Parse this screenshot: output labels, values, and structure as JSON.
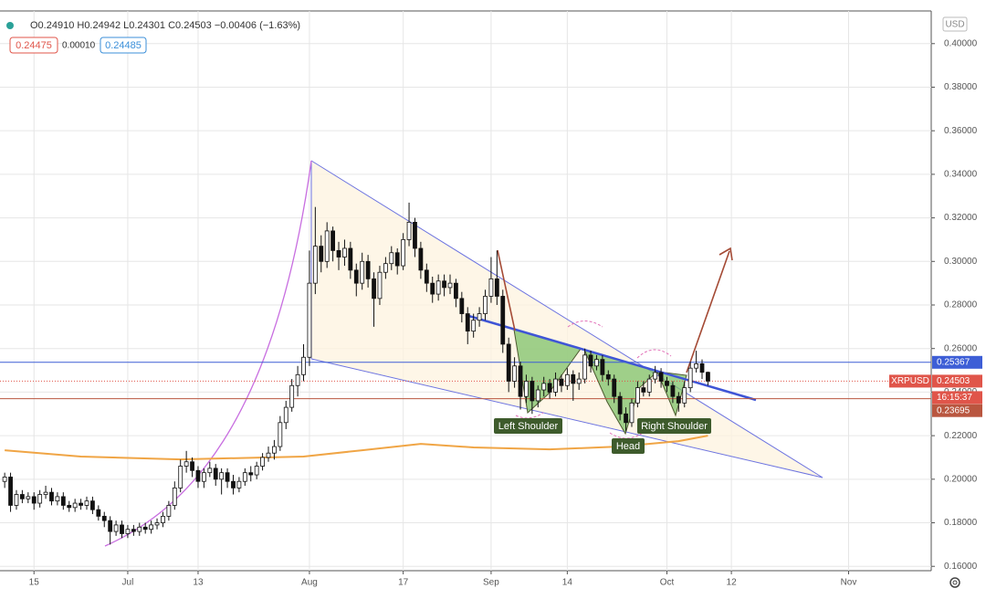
{
  "header": {
    "ohlc_line": "O0.24910 H0.24942 L0.24301 C0.24503 −0.00406 (−1.63%)",
    "bid": "0.24475",
    "spread": "0.00010",
    "ask": "0.24485"
  },
  "annotations": {
    "left_shoulder": "Left Shoulder",
    "head": "Head",
    "right_shoulder": "Right Shoulder"
  },
  "chart_data": {
    "type": "candlestick",
    "currency": "USD",
    "symbol": "XRPUSD",
    "countdown": "16:15:37",
    "xlim": [
      -5.8,
      153.1
    ],
    "ylim": [
      0.158,
      0.415
    ],
    "grid": true,
    "xticks": [
      {
        "value": 0,
        "label": "15"
      },
      {
        "value": 16,
        "label": "Jul"
      },
      {
        "value": 28,
        "label": "13"
      },
      {
        "value": 47,
        "label": "Aug"
      },
      {
        "value": 63,
        "label": "17"
      },
      {
        "value": 78,
        "label": "Sep"
      },
      {
        "value": 91,
        "label": "14"
      },
      {
        "value": 108,
        "label": "Oct"
      },
      {
        "value": 119,
        "label": "12"
      },
      {
        "value": 139,
        "label": "Nov"
      }
    ],
    "yticks": [
      {
        "value": 0.16,
        "label": "0.16000"
      },
      {
        "value": 0.18,
        "label": "0.18000"
      },
      {
        "value": 0.2,
        "label": "0.20000"
      },
      {
        "value": 0.22,
        "label": "0.22000"
      },
      {
        "value": 0.24,
        "label": "0.24000"
      },
      {
        "value": 0.26,
        "label": "0.26000"
      },
      {
        "value": 0.28,
        "label": "0.28000"
      },
      {
        "value": 0.3,
        "label": "0.30000"
      },
      {
        "value": 0.32,
        "label": "0.32000"
      },
      {
        "value": 0.34,
        "label": "0.34000"
      },
      {
        "value": 0.36,
        "label": "0.36000"
      },
      {
        "value": 0.38,
        "label": "0.38000"
      },
      {
        "value": 0.4,
        "label": "0.40000"
      }
    ],
    "up_color": "#ffffff",
    "down_color": "#111111",
    "candles": {
      "x": [
        -5,
        -4,
        -3,
        -2,
        -1,
        0,
        1,
        2,
        3,
        4,
        5,
        6,
        7,
        8,
        9,
        10,
        11,
        12,
        13,
        14,
        15,
        16,
        17,
        18,
        19,
        20,
        21,
        22,
        23,
        24,
        25,
        26,
        27,
        28,
        29,
        30,
        31,
        32,
        33,
        34,
        35,
        36,
        37,
        38,
        39,
        40,
        41,
        42,
        43,
        44,
        45,
        46,
        47,
        48,
        49,
        50,
        51,
        52,
        53,
        54,
        55,
        56,
        57,
        58,
        59,
        60,
        61,
        62,
        63,
        64,
        65,
        66,
        67,
        68,
        69,
        70,
        71,
        72,
        73,
        74,
        75,
        76,
        77,
        78,
        79,
        80,
        81,
        82,
        83,
        84,
        85,
        86,
        87,
        88,
        89,
        90,
        91,
        92,
        93,
        94,
        95,
        96,
        97,
        98,
        99,
        100,
        101,
        102,
        103,
        104,
        105,
        106,
        107,
        108,
        109,
        110,
        111,
        112,
        113,
        114,
        115
      ],
      "open": [
        0.199,
        0.201,
        0.188,
        0.193,
        0.191,
        0.192,
        0.189,
        0.193,
        0.194,
        0.19,
        0.192,
        0.188,
        0.187,
        0.189,
        0.188,
        0.19,
        0.186,
        0.183,
        0.181,
        0.176,
        0.179,
        0.175,
        0.177,
        0.176,
        0.178,
        0.177,
        0.179,
        0.18,
        0.183,
        0.188,
        0.196,
        0.206,
        0.208,
        0.204,
        0.199,
        0.203,
        0.205,
        0.2,
        0.203,
        0.199,
        0.196,
        0.199,
        0.203,
        0.202,
        0.206,
        0.21,
        0.212,
        0.215,
        0.226,
        0.233,
        0.243,
        0.248,
        0.256,
        0.29,
        0.307,
        0.3,
        0.314,
        0.305,
        0.302,
        0.306,
        0.296,
        0.29,
        0.3,
        0.292,
        0.283,
        0.295,
        0.299,
        0.304,
        0.298,
        0.31,
        0.318,
        0.306,
        0.296,
        0.29,
        0.285,
        0.291,
        0.288,
        0.29,
        0.283,
        0.276,
        0.268,
        0.273,
        0.276,
        0.284,
        0.292,
        0.284,
        0.262,
        0.245,
        0.252,
        0.238,
        0.245,
        0.236,
        0.241,
        0.244,
        0.24,
        0.246,
        0.243,
        0.248,
        0.244,
        0.246,
        0.257,
        0.252,
        0.255,
        0.248,
        0.246,
        0.238,
        0.23,
        0.226,
        0.235,
        0.242,
        0.24,
        0.246,
        0.249,
        0.245,
        0.243,
        0.238,
        0.235,
        0.242,
        0.251,
        0.253,
        0.2491
      ],
      "high": [
        0.203,
        0.203,
        0.195,
        0.195,
        0.194,
        0.194,
        0.195,
        0.197,
        0.196,
        0.194,
        0.194,
        0.19,
        0.191,
        0.191,
        0.192,
        0.192,
        0.188,
        0.185,
        0.183,
        0.181,
        0.181,
        0.179,
        0.179,
        0.18,
        0.18,
        0.181,
        0.182,
        0.185,
        0.19,
        0.199,
        0.209,
        0.213,
        0.21,
        0.206,
        0.205,
        0.208,
        0.207,
        0.205,
        0.205,
        0.202,
        0.201,
        0.205,
        0.206,
        0.208,
        0.212,
        0.215,
        0.218,
        0.229,
        0.236,
        0.246,
        0.252,
        0.262,
        0.305,
        0.325,
        0.312,
        0.318,
        0.316,
        0.309,
        0.31,
        0.309,
        0.299,
        0.304,
        0.303,
        0.295,
        0.298,
        0.302,
        0.307,
        0.306,
        0.313,
        0.327,
        0.32,
        0.309,
        0.299,
        0.293,
        0.294,
        0.294,
        0.294,
        0.292,
        0.286,
        0.279,
        0.276,
        0.279,
        0.287,
        0.302,
        0.305,
        0.287,
        0.265,
        0.256,
        0.254,
        0.248,
        0.247,
        0.243,
        0.247,
        0.246,
        0.249,
        0.248,
        0.251,
        0.25,
        0.249,
        0.26,
        0.259,
        0.257,
        0.257,
        0.25,
        0.248,
        0.24,
        0.233,
        0.237,
        0.245,
        0.245,
        0.248,
        0.252,
        0.251,
        0.247,
        0.245,
        0.24,
        0.245,
        0.254,
        0.259,
        0.255,
        0.24942
      ],
      "low": [
        0.196,
        0.185,
        0.186,
        0.189,
        0.189,
        0.186,
        0.187,
        0.191,
        0.188,
        0.188,
        0.186,
        0.185,
        0.185,
        0.186,
        0.186,
        0.184,
        0.181,
        0.178,
        0.17,
        0.174,
        0.173,
        0.173,
        0.174,
        0.174,
        0.175,
        0.175,
        0.177,
        0.178,
        0.181,
        0.186,
        0.194,
        0.203,
        0.201,
        0.196,
        0.196,
        0.201,
        0.197,
        0.193,
        0.196,
        0.193,
        0.194,
        0.197,
        0.199,
        0.2,
        0.204,
        0.208,
        0.209,
        0.213,
        0.223,
        0.231,
        0.238,
        0.245,
        0.252,
        0.285,
        0.295,
        0.297,
        0.3,
        0.296,
        0.298,
        0.292,
        0.284,
        0.287,
        0.288,
        0.27,
        0.28,
        0.292,
        0.296,
        0.294,
        0.296,
        0.307,
        0.302,
        0.292,
        0.286,
        0.281,
        0.282,
        0.284,
        0.285,
        0.279,
        0.272,
        0.262,
        0.265,
        0.27,
        0.273,
        0.281,
        0.28,
        0.258,
        0.24,
        0.242,
        0.232,
        0.235,
        0.23,
        0.233,
        0.238,
        0.237,
        0.238,
        0.24,
        0.241,
        0.236,
        0.241,
        0.244,
        0.249,
        0.25,
        0.245,
        0.243,
        0.235,
        0.227,
        0.222,
        0.224,
        0.233,
        0.238,
        0.238,
        0.244,
        0.242,
        0.24,
        0.235,
        0.231,
        0.233,
        0.24,
        0.249,
        0.246,
        0.24301
      ],
      "close": [
        0.201,
        0.188,
        0.193,
        0.191,
        0.192,
        0.189,
        0.193,
        0.194,
        0.19,
        0.192,
        0.188,
        0.187,
        0.189,
        0.188,
        0.19,
        0.186,
        0.183,
        0.181,
        0.176,
        0.179,
        0.175,
        0.177,
        0.176,
        0.178,
        0.177,
        0.179,
        0.18,
        0.183,
        0.188,
        0.196,
        0.206,
        0.208,
        0.204,
        0.199,
        0.203,
        0.205,
        0.2,
        0.203,
        0.199,
        0.196,
        0.199,
        0.203,
        0.202,
        0.206,
        0.21,
        0.212,
        0.215,
        0.226,
        0.233,
        0.243,
        0.248,
        0.256,
        0.29,
        0.307,
        0.3,
        0.314,
        0.305,
        0.302,
        0.306,
        0.296,
        0.29,
        0.3,
        0.292,
        0.283,
        0.295,
        0.299,
        0.304,
        0.298,
        0.31,
        0.318,
        0.306,
        0.296,
        0.29,
        0.285,
        0.291,
        0.288,
        0.29,
        0.283,
        0.276,
        0.268,
        0.273,
        0.276,
        0.284,
        0.292,
        0.284,
        0.262,
        0.245,
        0.252,
        0.238,
        0.245,
        0.236,
        0.241,
        0.244,
        0.24,
        0.246,
        0.243,
        0.248,
        0.244,
        0.246,
        0.257,
        0.252,
        0.255,
        0.248,
        0.246,
        0.238,
        0.23,
        0.226,
        0.235,
        0.242,
        0.24,
        0.246,
        0.249,
        0.245,
        0.243,
        0.238,
        0.235,
        0.242,
        0.251,
        0.253,
        0.2491,
        0.24503
      ]
    },
    "moving_average": {
      "color": "#f0a545",
      "x": [
        -5,
        8,
        25,
        46,
        56,
        66,
        75,
        88,
        100,
        110,
        115
      ],
      "values": [
        0.2133,
        0.2104,
        0.2091,
        0.2104,
        0.2133,
        0.2162,
        0.2146,
        0.2137,
        0.215,
        0.2175,
        0.22
      ]
    },
    "hlines": [
      {
        "value": 0.25367,
        "color": "#3d5ed6",
        "style": "solid"
      },
      {
        "value": 0.24503,
        "color": "#e0554a",
        "style": "dotted"
      },
      {
        "value": 0.23695,
        "color": "#b9563f",
        "style": "solid"
      }
    ]
  }
}
